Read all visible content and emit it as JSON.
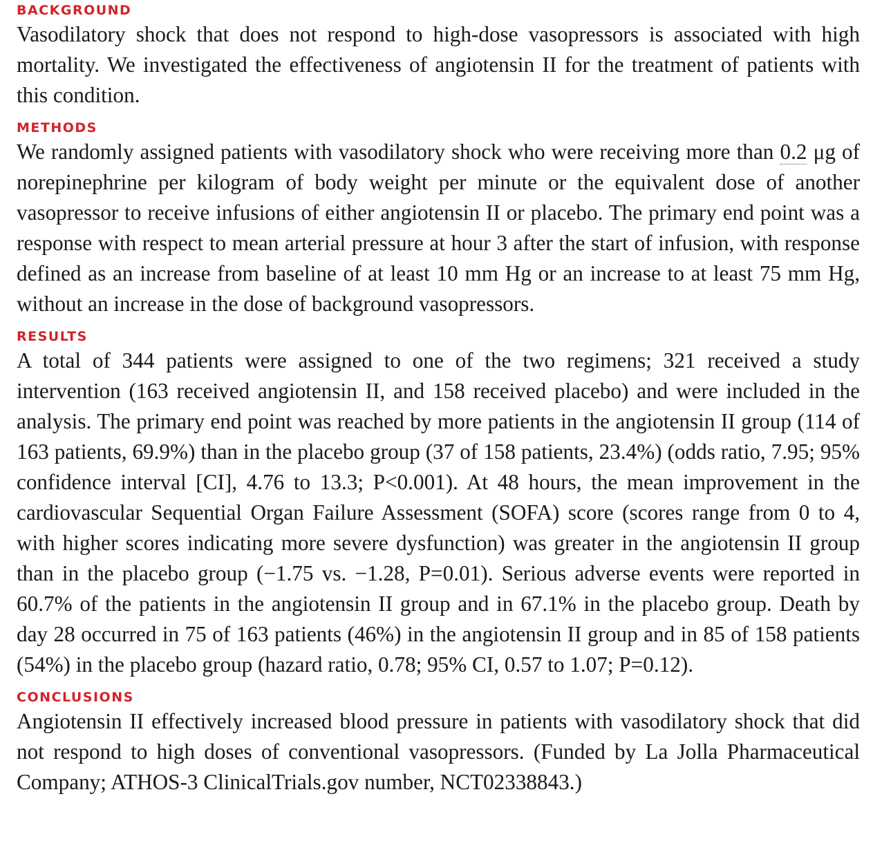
{
  "sections": {
    "background": {
      "heading": "BACKGROUND",
      "text": "Vasodilatory shock that does not respond to high-dose vasopressors is associated with high mortality. We investigated the effectiveness of angiotensin II for the treatment of patients with this condition."
    },
    "methods": {
      "heading": "METHODS",
      "text_before_dose": "We randomly assigned patients with vasodilatory shock who were receiving more than ",
      "dose_value": "0.2",
      "text_after_dose": " μg of norepinephrine per kilogram of body weight per minute or the equivalent dose of another vasopressor to receive infusions of either angiotensin II or placebo. The primary end point was a response with respect to mean arterial pressure at hour 3 after the start of infusion, with response defined as an increase from baseline of at least 10 mm Hg or an increase to at least 75 mm Hg, without an increase in the dose of background vasopressors."
    },
    "results": {
      "heading": "RESULTS",
      "text": "A total of 344 patients were assigned to one of the two regimens; 321 received a study intervention (163 received angiotensin II, and 158 received placebo) and were included in the analysis. The primary end point was reached by more patients in the angiotensin II group (114 of 163 patients, 69.9%) than in the placebo group (37 of 158 patients, 23.4%) (odds ratio, 7.95; 95% confidence interval [CI], 4.76 to 13.3; P<0.001). At 48 hours, the mean improvement in the cardiovascular Sequential Organ Failure Assess­ment (SOFA) score (scores range from 0 to 4, with higher scores indicating more severe dysfunction) was greater in the angiotensin II group than in the placebo group (−1.75 vs. −1.28, P=0.01). Serious adverse events were reported in 60.7% of the patients in the angiotensin II group and in 67.1% in the placebo group. Death by day 28 occurred in 75 of 163 patients (46%) in the angiotensin II group and in 85 of 158 patients (54%) in the placebo group (hazard ratio, 0.78; 95% CI, 0.57 to 1.07; P=0.12)."
    },
    "conclusions": {
      "heading": "CONCLUSIONS",
      "text": "Angiotensin II effectively increased blood pressure in patients with vasodilatory shock that did not respond to high doses of conventional vasopressors. (Funded by La Jolla Pharmaceutical Company; ATHOS-3 ClinicalTrials.gov number, NCT02338843.)"
    }
  },
  "colors": {
    "heading": "#d2232a",
    "body": "#1a1a1a"
  }
}
